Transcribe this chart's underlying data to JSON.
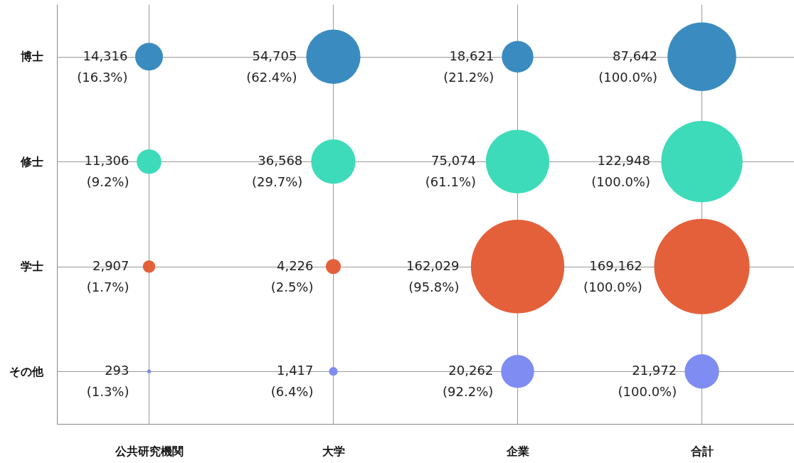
{
  "chart_data": {
    "type": "other",
    "categories": [
      "公共研究機関",
      "大学",
      "企業",
      "合計"
    ],
    "y_categories": [
      "博士",
      "修士",
      "学士",
      "その他"
    ],
    "series": [
      {
        "color": "#3a8cc0",
        "values": [
          14316,
          54705,
          18621,
          87642
        ],
        "value_labels": [
          "14,316\n(16.3%)",
          "54,705\n(62.4%)",
          "18,621\n(21.2%)",
          "87,642\n(100.0%)"
        ]
      },
      {
        "color": "#3ddbb9",
        "values": [
          11306,
          36568,
          75074,
          122948
        ],
        "value_labels": [
          "11,306\n(9.2%)",
          "36,568\n(29.7%)",
          "75,074\n(61.1%)",
          "122,948\n(100.0%)"
        ]
      },
      {
        "color": "#e4603a",
        "values": [
          2907,
          4226,
          162029,
          169162
        ],
        "value_labels": [
          "2,907\n(1.7%)",
          "4,226\n(2.5%)",
          "162,029\n(95.8%)",
          "169,162\n(100.0%)"
        ]
      },
      {
        "color": "#7f8cf2",
        "values": [
          293,
          1417,
          20262,
          21972
        ],
        "value_labels": [
          "293\n(1.3%)",
          "1,417\n(6.4%)",
          "20,262\n(92.2%)",
          "21,972\n(100.0%)"
        ]
      }
    ]
  }
}
